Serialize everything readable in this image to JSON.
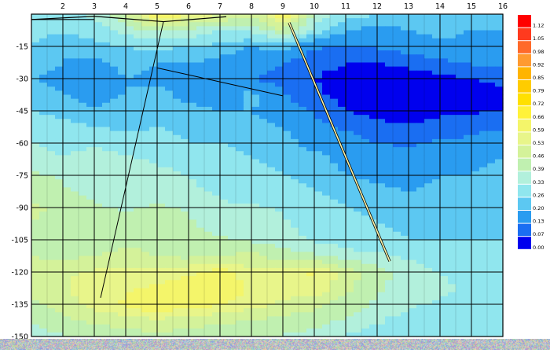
{
  "chart_data": {
    "type": "heatmap",
    "title": "",
    "xlabel": "",
    "ylabel": "",
    "x_ticks": [
      2,
      3,
      4,
      5,
      6,
      7,
      8,
      9,
      10,
      11,
      12,
      13,
      14,
      15,
      16
    ],
    "y_ticks": [
      -15,
      -30,
      -45,
      -60,
      -75,
      -90,
      -105,
      -120,
      -135,
      -150
    ],
    "xlim": [
      1,
      16
    ],
    "ylim": [
      -150,
      0
    ],
    "colorbar": {
      "placement": "right",
      "labels": [
        "1.12",
        "1.05",
        "0.98",
        "0.92",
        "0.85",
        "0.79",
        "0.72",
        "0.66",
        "0.59",
        "0.53",
        "0.46",
        "0.39",
        "0.33",
        "0.26",
        "0.20",
        "0.13",
        "0.07",
        "0.00"
      ],
      "colors": [
        "#ff0000",
        "#ff3a1e",
        "#ff6a2a",
        "#ff9a30",
        "#ffb400",
        "#ffcc00",
        "#ffe000",
        "#fff23a",
        "#f4f56a",
        "#e8f58a",
        "#d4f29a",
        "#c0f0b0",
        "#b2f0dc",
        "#90e6ee",
        "#5cc8f2",
        "#2a9cf0",
        "#1a6ef2",
        "#0000ee"
      ]
    },
    "grid": true,
    "rows_y": [
      0,
      -7.5,
      -15,
      -22.5,
      -30,
      -37.5,
      -45,
      -52.5,
      -60,
      -67.5,
      -75,
      -82.5,
      -90,
      -97.5,
      -105,
      -112.5,
      -120,
      -127.5,
      -135,
      -142.5,
      -150
    ],
    "cols_x": [
      1,
      2,
      3,
      4,
      5,
      6,
      7,
      8,
      9,
      10,
      11,
      12,
      13,
      14,
      15,
      16
    ],
    "values": [
      [
        0.33,
        0.3,
        0.34,
        0.45,
        0.7,
        0.6,
        0.55,
        0.48,
        0.65,
        0.4,
        0.3,
        0.26,
        0.24,
        0.26,
        0.24,
        0.22
      ],
      [
        0.3,
        0.27,
        0.3,
        0.35,
        0.4,
        0.38,
        0.33,
        0.35,
        0.45,
        0.3,
        0.2,
        0.18,
        0.2,
        0.22,
        0.2,
        0.2
      ],
      [
        0.26,
        0.2,
        0.24,
        0.26,
        0.28,
        0.26,
        0.24,
        0.2,
        0.22,
        0.14,
        0.12,
        0.14,
        0.16,
        0.18,
        0.18,
        0.2
      ],
      [
        0.22,
        0.2,
        0.18,
        0.22,
        0.2,
        0.2,
        0.18,
        0.16,
        0.14,
        0.09,
        0.07,
        0.07,
        0.09,
        0.12,
        0.14,
        0.16
      ],
      [
        0.2,
        0.18,
        0.16,
        0.2,
        0.18,
        0.16,
        0.14,
        0.13,
        0.1,
        0.07,
        0.05,
        0.03,
        0.03,
        0.05,
        0.07,
        0.08
      ],
      [
        0.22,
        0.2,
        0.18,
        0.2,
        0.22,
        0.18,
        0.16,
        0.22,
        0.14,
        0.08,
        0.05,
        0.02,
        0.02,
        0.03,
        0.04,
        0.06
      ],
      [
        0.26,
        0.24,
        0.2,
        0.22,
        0.2,
        0.22,
        0.2,
        0.2,
        0.16,
        0.12,
        0.07,
        0.04,
        0.03,
        0.05,
        0.06,
        0.07
      ],
      [
        0.3,
        0.28,
        0.26,
        0.24,
        0.26,
        0.24,
        0.22,
        0.22,
        0.2,
        0.16,
        0.12,
        0.09,
        0.08,
        0.1,
        0.12,
        0.12
      ],
      [
        0.33,
        0.3,
        0.32,
        0.3,
        0.28,
        0.26,
        0.26,
        0.24,
        0.22,
        0.18,
        0.16,
        0.13,
        0.12,
        0.14,
        0.14,
        0.16
      ],
      [
        0.36,
        0.34,
        0.36,
        0.34,
        0.32,
        0.3,
        0.28,
        0.26,
        0.24,
        0.22,
        0.18,
        0.16,
        0.18,
        0.18,
        0.18,
        0.2
      ],
      [
        0.4,
        0.38,
        0.38,
        0.36,
        0.35,
        0.33,
        0.3,
        0.28,
        0.26,
        0.24,
        0.2,
        0.18,
        0.16,
        0.2,
        0.2,
        0.22
      ],
      [
        0.42,
        0.4,
        0.36,
        0.38,
        0.36,
        0.34,
        0.32,
        0.3,
        0.3,
        0.26,
        0.24,
        0.22,
        0.2,
        0.22,
        0.24,
        0.22
      ],
      [
        0.48,
        0.44,
        0.4,
        0.38,
        0.4,
        0.38,
        0.34,
        0.34,
        0.32,
        0.28,
        0.26,
        0.24,
        0.22,
        0.22,
        0.24,
        0.22
      ],
      [
        0.46,
        0.42,
        0.4,
        0.42,
        0.42,
        0.4,
        0.36,
        0.36,
        0.34,
        0.3,
        0.28,
        0.26,
        0.24,
        0.24,
        0.24,
        0.24
      ],
      [
        0.44,
        0.4,
        0.42,
        0.44,
        0.44,
        0.42,
        0.4,
        0.38,
        0.36,
        0.32,
        0.3,
        0.28,
        0.26,
        0.26,
        0.26,
        0.26
      ],
      [
        0.46,
        0.44,
        0.46,
        0.48,
        0.46,
        0.44,
        0.46,
        0.48,
        0.42,
        0.4,
        0.36,
        0.34,
        0.32,
        0.3,
        0.3,
        0.28
      ],
      [
        0.5,
        0.52,
        0.54,
        0.56,
        0.55,
        0.58,
        0.62,
        0.55,
        0.55,
        0.6,
        0.5,
        0.42,
        0.36,
        0.33,
        0.3,
        0.3
      ],
      [
        0.48,
        0.52,
        0.56,
        0.58,
        0.6,
        0.62,
        0.64,
        0.58,
        0.56,
        0.58,
        0.48,
        0.4,
        0.36,
        0.34,
        0.32,
        0.3
      ],
      [
        0.44,
        0.5,
        0.56,
        0.6,
        0.66,
        0.62,
        0.6,
        0.56,
        0.52,
        0.48,
        0.42,
        0.38,
        0.34,
        0.32,
        0.3,
        0.28
      ],
      [
        0.4,
        0.44,
        0.48,
        0.5,
        0.52,
        0.5,
        0.48,
        0.46,
        0.44,
        0.42,
        0.38,
        0.34,
        0.3,
        0.3,
        0.28,
        0.28
      ],
      [
        0.36,
        0.38,
        0.4,
        0.42,
        0.44,
        0.42,
        0.4,
        0.4,
        0.38,
        0.36,
        0.32,
        0.3,
        0.28,
        0.28,
        0.26,
        0.26
      ]
    ]
  }
}
